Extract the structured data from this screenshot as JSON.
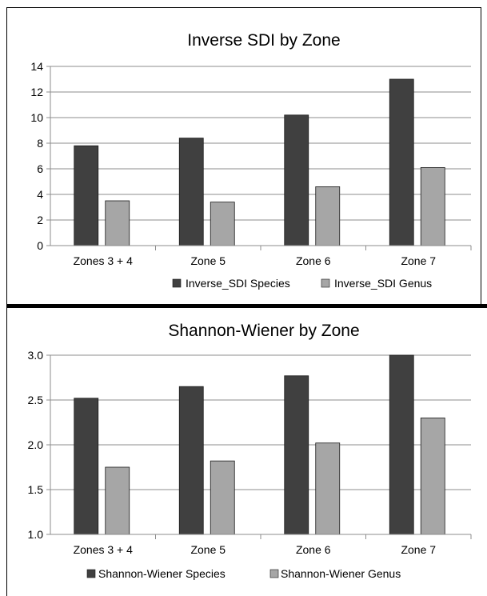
{
  "chart_data": [
    {
      "type": "bar",
      "title": "Inverse SDI by Zone",
      "xlabel": "",
      "ylabel": "",
      "categories": [
        "Zones 3 + 4",
        "Zone 5",
        "Zone 6",
        "Zone 7"
      ],
      "series": [
        {
          "name": "Inverse_SDI Species",
          "values": [
            7.8,
            8.4,
            10.2,
            13.0
          ],
          "color": "#404040"
        },
        {
          "name": "Inverse_SDI Genus",
          "values": [
            3.5,
            3.4,
            4.6,
            6.1
          ],
          "color": "#a6a6a6"
        }
      ],
      "ylim": [
        0,
        14
      ],
      "yticks": [
        0,
        2,
        4,
        6,
        8,
        10,
        12,
        14
      ],
      "ytick_labels": [
        "0",
        "2",
        "4",
        "6",
        "8",
        "10",
        "12",
        "14"
      ],
      "grid": true,
      "legend_position": "bottom"
    },
    {
      "type": "bar",
      "title": "Shannon-Wiener by Zone",
      "xlabel": "",
      "ylabel": "",
      "categories": [
        "Zones 3 + 4",
        "Zone 5",
        "Zone 6",
        "Zone 7"
      ],
      "series": [
        {
          "name": "Shannon-Wiener Species",
          "values": [
            2.52,
            2.65,
            2.77,
            3.0
          ],
          "color": "#404040"
        },
        {
          "name": "Shannon-Wiener Genus",
          "values": [
            1.75,
            1.82,
            2.02,
            2.3
          ],
          "color": "#a6a6a6"
        }
      ],
      "ylim": [
        1.0,
        3.0
      ],
      "yticks": [
        1.0,
        1.5,
        2.0,
        2.5,
        3.0
      ],
      "ytick_labels": [
        "1.0",
        "1.5",
        "2.0",
        "2.5",
        "3.0"
      ],
      "grid": true,
      "legend_position": "bottom"
    }
  ]
}
